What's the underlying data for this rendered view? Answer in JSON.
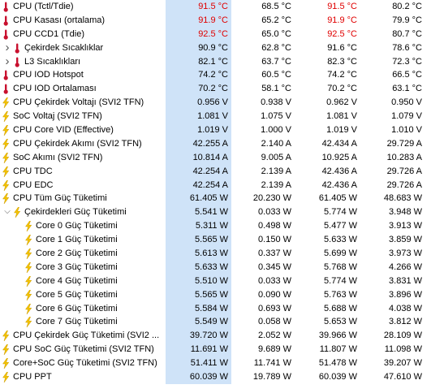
{
  "colors": {
    "current_col_bg": "#cfe3f8",
    "alarm_red": "#e00000",
    "temp_icon": "#c8102e",
    "power_icon": "#f5c400"
  },
  "rows": [
    {
      "label": "CPU (Tctl/Tdie)",
      "icon": "thermometer-icon",
      "indent": 0,
      "expander": false,
      "current": "91.5 °C",
      "min": "68.5 °C",
      "max": "91.5 °C",
      "avg": "80.2 °C",
      "red": [
        true,
        false,
        true,
        false
      ]
    },
    {
      "label": "CPU Kasası (ortalama)",
      "icon": "thermometer-icon",
      "indent": 0,
      "expander": false,
      "current": "91.9 °C",
      "min": "65.2 °C",
      "max": "91.9 °C",
      "avg": "79.9 °C",
      "red": [
        true,
        false,
        true,
        false
      ]
    },
    {
      "label": "CPU CCD1 (Tdie)",
      "icon": "thermometer-icon",
      "indent": 0,
      "expander": false,
      "current": "92.5 °C",
      "min": "65.0 °C",
      "max": "92.5 °C",
      "avg": "80.7 °C",
      "red": [
        true,
        false,
        true,
        false
      ]
    },
    {
      "label": "Çekirdek Sıcaklıklar",
      "icon": "thermometer-icon",
      "indent": 1,
      "expander": "collapsed",
      "current": "90.9 °C",
      "min": "62.8 °C",
      "max": "91.6 °C",
      "avg": "78.6 °C",
      "red": [
        false,
        false,
        false,
        false
      ]
    },
    {
      "label": "L3 Sıcaklıkları",
      "icon": "thermometer-icon",
      "indent": 1,
      "expander": "collapsed",
      "current": "82.1 °C",
      "min": "63.7 °C",
      "max": "82.3 °C",
      "avg": "72.3 °C",
      "red": [
        false,
        false,
        false,
        false
      ]
    },
    {
      "label": "CPU IOD Hotspot",
      "icon": "thermometer-icon",
      "indent": 0,
      "expander": false,
      "current": "74.2 °C",
      "min": "60.5 °C",
      "max": "74.2 °C",
      "avg": "66.5 °C",
      "red": [
        false,
        false,
        false,
        false
      ]
    },
    {
      "label": "CPU IOD Ortalaması",
      "icon": "thermometer-icon",
      "indent": 0,
      "expander": false,
      "current": "70.2 °C",
      "min": "58.1 °C",
      "max": "70.2 °C",
      "avg": "63.1 °C",
      "red": [
        false,
        false,
        false,
        false
      ]
    },
    {
      "label": "CPU Çekirdek Voltajı (SVI2 TFN)",
      "icon": "lightning-icon",
      "indent": 0,
      "expander": false,
      "current": "0.956 V",
      "min": "0.938 V",
      "max": "0.962 V",
      "avg": "0.950 V",
      "red": [
        false,
        false,
        false,
        false
      ]
    },
    {
      "label": "SoC Voltaj (SVI2 TFN)",
      "icon": "lightning-icon",
      "indent": 0,
      "expander": false,
      "current": "1.081 V",
      "min": "1.075 V",
      "max": "1.081 V",
      "avg": "1.079 V",
      "red": [
        false,
        false,
        false,
        false
      ]
    },
    {
      "label": "CPU Core VID (Effective)",
      "icon": "lightning-icon",
      "indent": 0,
      "expander": false,
      "current": "1.019 V",
      "min": "1.000 V",
      "max": "1.019 V",
      "avg": "1.010 V",
      "red": [
        false,
        false,
        false,
        false
      ]
    },
    {
      "label": "CPU Çekirdek Akımı (SVI2 TFN)",
      "icon": "lightning-icon",
      "indent": 0,
      "expander": false,
      "current": "42.255 A",
      "min": "2.140 A",
      "max": "42.434 A",
      "avg": "29.729 A",
      "red": [
        false,
        false,
        false,
        false
      ]
    },
    {
      "label": "SoC Akımı (SVI2 TFN)",
      "icon": "lightning-icon",
      "indent": 0,
      "expander": false,
      "current": "10.814 A",
      "min": "9.005 A",
      "max": "10.925 A",
      "avg": "10.283 A",
      "red": [
        false,
        false,
        false,
        false
      ]
    },
    {
      "label": "CPU TDC",
      "icon": "lightning-icon",
      "indent": 0,
      "expander": false,
      "current": "42.254 A",
      "min": "2.139 A",
      "max": "42.436 A",
      "avg": "29.726 A",
      "red": [
        false,
        false,
        false,
        false
      ]
    },
    {
      "label": "CPU EDC",
      "icon": "lightning-icon",
      "indent": 0,
      "expander": false,
      "current": "42.254 A",
      "min": "2.139 A",
      "max": "42.436 A",
      "avg": "29.726 A",
      "red": [
        false,
        false,
        false,
        false
      ]
    },
    {
      "label": "CPU Tüm Güç Tüketimi",
      "icon": "lightning-icon",
      "indent": 0,
      "expander": false,
      "current": "61.405 W",
      "min": "20.230 W",
      "max": "61.405 W",
      "avg": "48.683 W",
      "red": [
        false,
        false,
        false,
        false
      ]
    },
    {
      "label": "Çekirdekleri Güç Tüketimi",
      "icon": "lightning-icon",
      "indent": 1,
      "expander": "expanded",
      "current": "5.541 W",
      "min": "0.033 W",
      "max": "5.774 W",
      "avg": "3.948 W",
      "red": [
        false,
        false,
        false,
        false
      ]
    },
    {
      "label": "Core 0 Güç Tüketimi",
      "icon": "lightning-icon",
      "indent": 2,
      "expander": false,
      "current": "5.311 W",
      "min": "0.498 W",
      "max": "5.477 W",
      "avg": "3.913 W",
      "red": [
        false,
        false,
        false,
        false
      ]
    },
    {
      "label": "Core 1 Güç Tüketimi",
      "icon": "lightning-icon",
      "indent": 2,
      "expander": false,
      "current": "5.565 W",
      "min": "0.150 W",
      "max": "5.633 W",
      "avg": "3.859 W",
      "red": [
        false,
        false,
        false,
        false
      ]
    },
    {
      "label": "Core 2 Güç Tüketimi",
      "icon": "lightning-icon",
      "indent": 2,
      "expander": false,
      "current": "5.613 W",
      "min": "0.337 W",
      "max": "5.699 W",
      "avg": "3.973 W",
      "red": [
        false,
        false,
        false,
        false
      ]
    },
    {
      "label": "Core 3 Güç Tüketimi",
      "icon": "lightning-icon",
      "indent": 2,
      "expander": false,
      "current": "5.633 W",
      "min": "0.345 W",
      "max": "5.768 W",
      "avg": "4.266 W",
      "red": [
        false,
        false,
        false,
        false
      ]
    },
    {
      "label": "Core 4 Güç Tüketimi",
      "icon": "lightning-icon",
      "indent": 2,
      "expander": false,
      "current": "5.510 W",
      "min": "0.033 W",
      "max": "5.774 W",
      "avg": "3.831 W",
      "red": [
        false,
        false,
        false,
        false
      ]
    },
    {
      "label": "Core 5 Güç Tüketimi",
      "icon": "lightning-icon",
      "indent": 2,
      "expander": false,
      "current": "5.565 W",
      "min": "0.090 W",
      "max": "5.763 W",
      "avg": "3.896 W",
      "red": [
        false,
        false,
        false,
        false
      ]
    },
    {
      "label": "Core 6 Güç Tüketimi",
      "icon": "lightning-icon",
      "indent": 2,
      "expander": false,
      "current": "5.584 W",
      "min": "0.693 W",
      "max": "5.688 W",
      "avg": "4.038 W",
      "red": [
        false,
        false,
        false,
        false
      ]
    },
    {
      "label": "Core 7 Güç Tüketimi",
      "icon": "lightning-icon",
      "indent": 2,
      "expander": false,
      "current": "5.549 W",
      "min": "0.058 W",
      "max": "5.653 W",
      "avg": "3.812 W",
      "red": [
        false,
        false,
        false,
        false
      ]
    },
    {
      "label": "CPU Çekirdek Güç Tüketimi (SVI2 ...",
      "icon": "lightning-icon",
      "indent": 0,
      "expander": false,
      "current": "39.720 W",
      "min": "2.052 W",
      "max": "39.966 W",
      "avg": "28.109 W",
      "red": [
        false,
        false,
        false,
        false
      ]
    },
    {
      "label": "CPU SoC Güç Tüketimi (SVI2 TFN)",
      "icon": "lightning-icon",
      "indent": 0,
      "expander": false,
      "current": "11.691 W",
      "min": "9.689 W",
      "max": "11.807 W",
      "avg": "11.098 W",
      "red": [
        false,
        false,
        false,
        false
      ]
    },
    {
      "label": "Core+SoC Güç Tüketimi (SVI2 TFN)",
      "icon": "lightning-icon",
      "indent": 0,
      "expander": false,
      "current": "51.411 W",
      "min": "11.741 W",
      "max": "51.478 W",
      "avg": "39.207 W",
      "red": [
        false,
        false,
        false,
        false
      ]
    },
    {
      "label": "CPU PPT",
      "icon": "lightning-icon",
      "indent": 0,
      "expander": false,
      "current": "60.039 W",
      "min": "19.789 W",
      "max": "60.039 W",
      "avg": "47.610 W",
      "red": [
        false,
        false,
        false,
        false
      ]
    }
  ]
}
